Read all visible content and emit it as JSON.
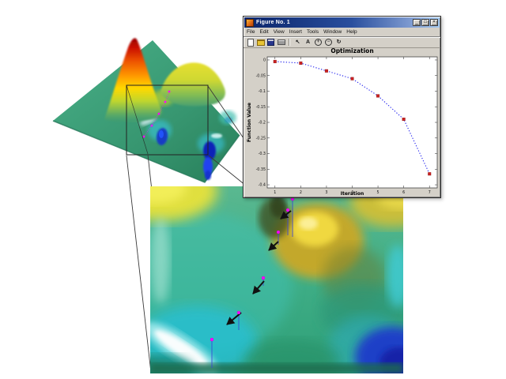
{
  "window": {
    "title": "Figure No. 1",
    "menu": [
      "File",
      "Edit",
      "View",
      "Insert",
      "Tools",
      "Window",
      "Help"
    ],
    "toolbar_icons": [
      {
        "name": "new-figure-icon"
      },
      {
        "name": "open-file-icon"
      },
      {
        "name": "save-figure-icon"
      },
      {
        "name": "print-figure-icon"
      },
      {
        "name": "edit-plot-icon",
        "glyph": "↖"
      },
      {
        "name": "insert-text-icon",
        "glyph": "A"
      },
      {
        "name": "zoom-in-icon",
        "glyph": "+"
      },
      {
        "name": "zoom-out-icon",
        "glyph": "−"
      },
      {
        "name": "rotate-3d-icon",
        "glyph": "↻"
      }
    ],
    "controls": {
      "minimize": "_",
      "maximize": "□",
      "close": "×"
    }
  },
  "chart_data": {
    "type": "line",
    "title": "Optimization",
    "xlabel": "Iteration",
    "ylabel": "Function Value",
    "x": [
      1,
      2,
      3,
      4,
      5,
      6,
      7
    ],
    "values": [
      -0.005,
      -0.01,
      -0.035,
      -0.06,
      -0.115,
      -0.19,
      -0.365
    ],
    "xlim": [
      0.7,
      7.3
    ],
    "ylim": [
      -0.41,
      0.01
    ],
    "xticks": [
      1,
      2,
      3,
      4,
      5,
      6,
      7
    ],
    "xtick_labels": [
      "1",
      "2",
      "3",
      "4",
      "5",
      "6",
      "7"
    ],
    "yticks": [
      0,
      -0.05,
      -0.1,
      -0.15,
      -0.2,
      -0.25,
      -0.3,
      -0.35,
      -0.4
    ],
    "ytick_labels": [
      "0",
      "-0.05",
      "-0.1",
      "-0.15",
      "-0.2",
      "-0.25",
      "-0.3",
      "-0.35",
      "-0.4"
    ],
    "line_color": "#2222ee",
    "line_style": "dotted",
    "marker": "square",
    "marker_color": "#cc2222",
    "grid": false,
    "legend": null
  },
  "surface_overview": {
    "plane_color": "#3a9a74",
    "peak_top_color": "#cc1100",
    "valley_color": "#1024b8",
    "iterate_marker_color": "#ff00ff"
  },
  "zoom_view": {
    "arrow_color": "#111111",
    "iterate_marker_color": "#ff00ff",
    "stem_color": "#3a46d8"
  },
  "page": {
    "background": "#ffffff"
  }
}
